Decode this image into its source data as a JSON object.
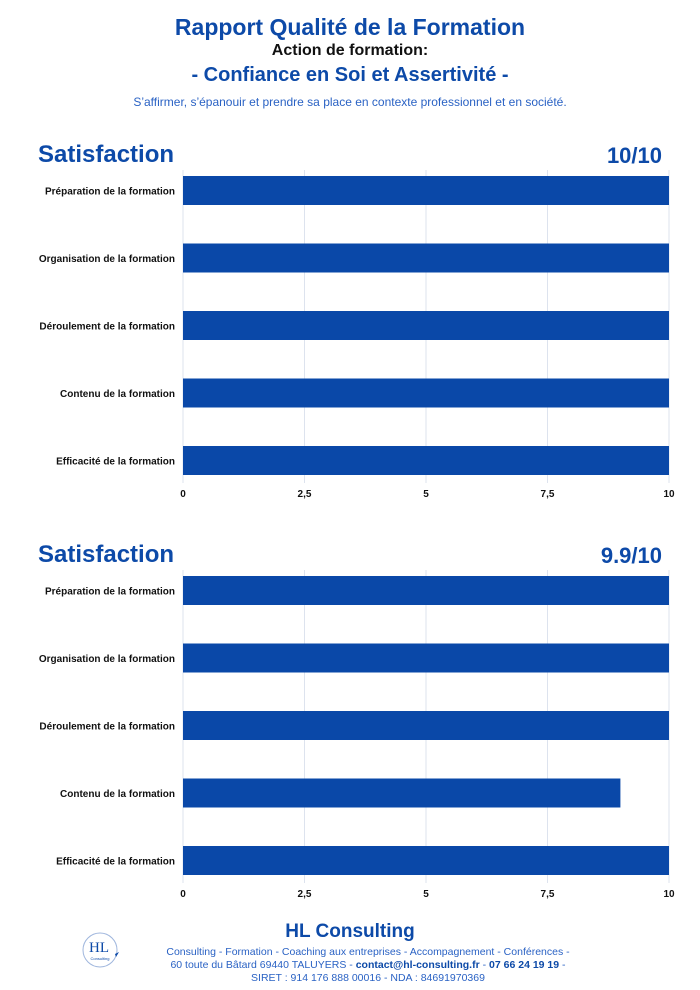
{
  "header": {
    "title": "Rapport Qualité de la Formation",
    "action_label": "Action de formation:",
    "course_title": "- Confiance en Soi et Assertivité -",
    "subtitle": "S’affirmer, s’épanouir et prendre sa place en contexte professionnel et en société."
  },
  "colors": {
    "brand_blue": "#0d4aa8",
    "bar_blue": "#0a48a8",
    "light_blue": "#2a62c4",
    "grid": "#dde3ee"
  },
  "charts": [
    {
      "title": "Satisfaction",
      "score": "10/10"
    },
    {
      "title": "Satisfaction",
      "score": "9.9/10"
    }
  ],
  "chart_data": [
    {
      "type": "bar",
      "orientation": "horizontal",
      "title": "Satisfaction",
      "categories": [
        "Préparation de la formation",
        "Organisation de la formation",
        "Déroulement de la formation",
        "Contenu de la formation",
        "Efficacité de la formation"
      ],
      "values": [
        10,
        10,
        10,
        10,
        10
      ],
      "xlim": [
        0,
        10
      ],
      "xticks": [
        "0",
        "2,5",
        "5",
        "7,5",
        "10"
      ],
      "grid": true
    },
    {
      "type": "bar",
      "orientation": "horizontal",
      "title": "Satisfaction",
      "categories": [
        "Préparation de la formation",
        "Organisation de la formation",
        "Déroulement de la formation",
        "Contenu de la formation",
        "Efficacité de la formation"
      ],
      "values": [
        10,
        10,
        10,
        9,
        10
      ],
      "xlim": [
        0,
        10
      ],
      "xticks": [
        "0",
        "2,5",
        "5",
        "7,5",
        "10"
      ],
      "grid": true
    }
  ],
  "footer": {
    "brand": "HL Consulting",
    "logo_text": "HL",
    "logo_sub": "Consulting",
    "line1": "Consulting - Formation - Coaching aux entreprises - Accompagnement - Conférences  -",
    "line2_address": "60 toute du Bâtard 69440 TALUYERS - ",
    "line2_email": "contact@hl-consulting.fr",
    "line2_sep": " - ",
    "line2_phone": "07 66 24 19 19",
    "line2_end": " -",
    "line3": "SIRET : 914 176 888 00016 - NDA : 84691970369"
  }
}
